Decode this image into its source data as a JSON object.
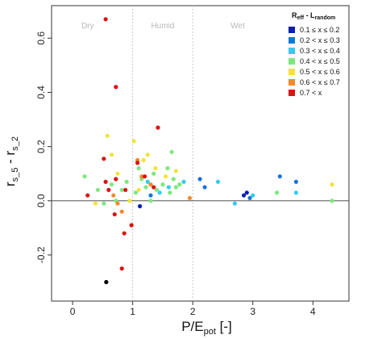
{
  "chart_data": {
    "type": "scatter",
    "title": "",
    "xlabel": {
      "main": "P/E",
      "sub": "pot",
      "suffix": " [-]"
    },
    "ylabel": {
      "r1": "r",
      "s1": "s_5",
      "mid": " - ",
      "r2": "r",
      "s2": "s_2"
    },
    "xlim": [
      -0.35,
      4.6
    ],
    "ylim": [
      -0.37,
      0.72
    ],
    "xticks": [
      0,
      1,
      2,
      3,
      4
    ],
    "yticks": [
      -0.2,
      0.0,
      0.2,
      0.4,
      0.6
    ],
    "xtick_labels": [
      "0",
      "1",
      "2",
      "3",
      "4"
    ],
    "ytick_labels": [
      "-0.2",
      "0.0",
      "0.2",
      "0.4",
      "0.6"
    ],
    "grid": false,
    "reference_lines": {
      "horizontal_y": 0,
      "vertical_dashed_x": [
        1,
        2
      ]
    },
    "regions": [
      {
        "label": "Dry",
        "x": 0.25
      },
      {
        "label": "Humid",
        "x": 1.5
      },
      {
        "label": "Wet",
        "x": 2.75
      }
    ],
    "legend": {
      "placement": "top-right",
      "title_main": "R",
      "title_sub1": "eff",
      "title_mid": " - L",
      "title_sub2": "random"
    },
    "series": [
      {
        "name": "0.1 ≤ x ≤ 0.2",
        "color": "#0a1fb0",
        "points": [
          [
            1.12,
            -0.02
          ],
          [
            2.85,
            0.02
          ],
          [
            2.9,
            0.03
          ]
        ]
      },
      {
        "name": "0.2 < x ≤ 0.3",
        "color": "#1a73d9",
        "points": [
          [
            2.12,
            0.08
          ],
          [
            2.2,
            0.05
          ],
          [
            3.45,
            0.09
          ],
          [
            3.72,
            0.07
          ],
          [
            2.95,
            0.01
          ],
          [
            1.3,
            0.02
          ]
        ]
      },
      {
        "name": "0.3 < x ≤ 0.4",
        "color": "#33ccee",
        "points": [
          [
            1.85,
            0.07
          ],
          [
            2.42,
            0.07
          ],
          [
            2.7,
            -0.01
          ],
          [
            3.0,
            0.02
          ],
          [
            3.72,
            0.03
          ],
          [
            1.6,
            0.05
          ],
          [
            1.45,
            0.03
          ],
          [
            1.25,
            0.07
          ]
        ]
      },
      {
        "name": "0.4 < x ≤ 0.5",
        "color": "#7de87d",
        "points": [
          [
            0.2,
            0.09
          ],
          [
            0.42,
            0.04
          ],
          [
            0.52,
            -0.01
          ],
          [
            0.65,
            0.06
          ],
          [
            0.72,
            0.0
          ],
          [
            0.82,
            0.04
          ],
          [
            0.9,
            0.07
          ],
          [
            1.05,
            0.03
          ],
          [
            1.15,
            0.08
          ],
          [
            1.22,
            0.05
          ],
          [
            1.35,
            0.1
          ],
          [
            1.4,
            0.04
          ],
          [
            1.5,
            0.06
          ],
          [
            1.58,
            0.12
          ],
          [
            1.62,
            0.03
          ],
          [
            1.68,
            0.08
          ],
          [
            1.72,
            0.05
          ],
          [
            1.78,
            0.06
          ],
          [
            1.65,
            0.18
          ],
          [
            3.4,
            0.03
          ],
          [
            4.32,
            0.0
          ],
          [
            1.1,
            0.12
          ],
          [
            1.3,
            0.0
          ]
        ]
      },
      {
        "name": "0.5 < x ≤ 0.6",
        "color": "#f2e33a",
        "points": [
          [
            0.38,
            -0.01
          ],
          [
            0.58,
            0.24
          ],
          [
            0.65,
            0.17
          ],
          [
            0.75,
            0.1
          ],
          [
            1.02,
            0.22
          ],
          [
            1.18,
            0.15
          ],
          [
            1.25,
            0.17
          ],
          [
            1.38,
            0.12
          ],
          [
            1.55,
            0.09
          ],
          [
            1.72,
            0.11
          ],
          [
            1.1,
            0.04
          ],
          [
            4.32,
            0.06
          ],
          [
            0.95,
            0.0
          ]
        ]
      },
      {
        "name": "0.6 < x ≤ 0.7",
        "color": "#f58a2a",
        "points": [
          [
            0.75,
            -0.01
          ],
          [
            0.82,
            -0.04
          ],
          [
            1.08,
            0.15
          ],
          [
            1.15,
            0.09
          ],
          [
            1.3,
            0.06
          ],
          [
            1.95,
            0.01
          ],
          [
            0.68,
            0.02
          ]
        ]
      },
      {
        "name": "0.7 < x",
        "color": "#dd1111",
        "points": [
          [
            0.55,
            0.67
          ],
          [
            0.72,
            0.42
          ],
          [
            1.42,
            0.27
          ],
          [
            0.52,
            0.155
          ],
          [
            0.55,
            0.07
          ],
          [
            0.72,
            0.08
          ],
          [
            0.6,
            0.04
          ],
          [
            0.88,
            0.04
          ],
          [
            1.08,
            0.14
          ],
          [
            1.2,
            0.09
          ],
          [
            1.35,
            0.05
          ],
          [
            0.86,
            -0.12
          ],
          [
            0.98,
            -0.09
          ],
          [
            0.7,
            -0.05
          ],
          [
            0.82,
            -0.25
          ],
          [
            0.25,
            0.02
          ]
        ]
      },
      {
        "name": "",
        "color": "#000000",
        "points": [
          [
            0.56,
            -0.3
          ]
        ]
      }
    ]
  }
}
